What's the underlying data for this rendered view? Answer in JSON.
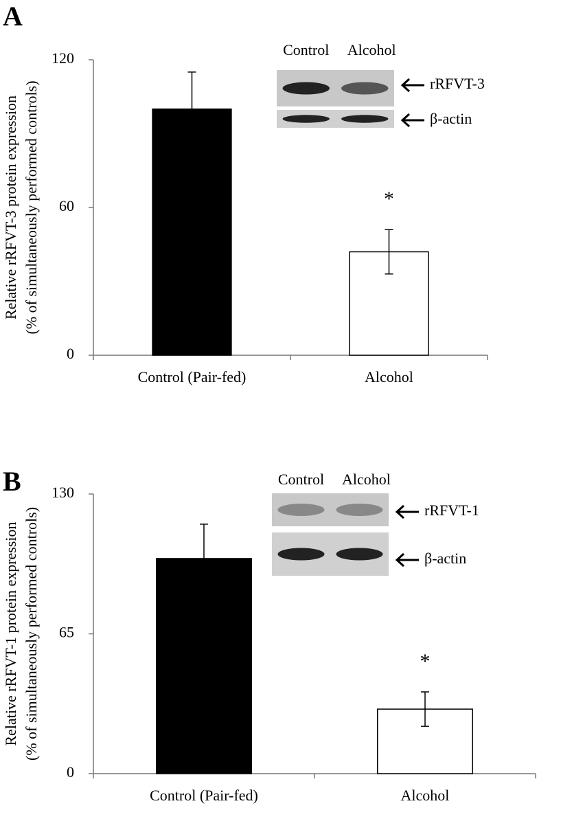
{
  "chart_data": [
    {
      "type": "bar",
      "panel": "A",
      "ylabel": [
        "Relative rRFVT-3 protein expression",
        "(% of simultaneously performed controls)"
      ],
      "categories": [
        "Control (Pair-fed)",
        "Alcohol"
      ],
      "values": [
        100,
        42
      ],
      "errors": [
        15,
        9
      ],
      "colors": [
        "#000000",
        "#ffffff"
      ],
      "ylim": [
        0,
        120
      ],
      "yticks": [
        0,
        60,
        120
      ],
      "annotations": [
        {
          "text": "*",
          "category": "Alcohol"
        }
      ],
      "inset": {
        "lanes": [
          "Control",
          "Alcohol"
        ],
        "bands": [
          "rRFVT-3",
          "β-actin"
        ]
      }
    },
    {
      "type": "bar",
      "panel": "B",
      "ylabel": [
        "Relative rRFVT-1 protein expression",
        "(% of simultaneously performed controls)"
      ],
      "categories": [
        "Control (Pair-fed)",
        "Alcohol"
      ],
      "values": [
        100,
        30
      ],
      "errors": [
        16,
        8
      ],
      "colors": [
        "#000000",
        "#ffffff"
      ],
      "ylim": [
        0,
        130
      ],
      "yticks": [
        0,
        65,
        130
      ],
      "annotations": [
        {
          "text": "*",
          "category": "Alcohol"
        }
      ],
      "inset": {
        "lanes": [
          "Control",
          "Alcohol"
        ],
        "bands": [
          "rRFVT-1",
          "β-actin"
        ]
      }
    }
  ]
}
